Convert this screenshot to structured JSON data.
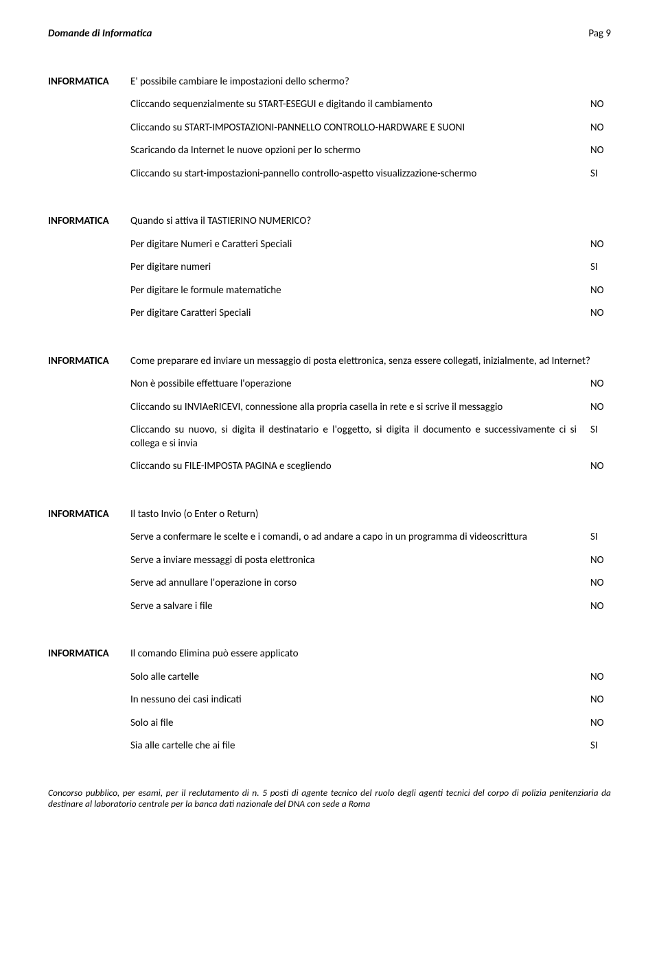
{
  "header": {
    "left": "Domande di Informatica",
    "right": "Pag 9"
  },
  "category_label": "INFORMATICA",
  "questions": [
    {
      "text": "E' possibile cambiare le impostazioni dello schermo?",
      "answers": [
        {
          "text": "Cliccando sequenzialmente su START-ESEGUI e digitando il cambiamento",
          "flag": "NO"
        },
        {
          "text": "Cliccando su START-IMPOSTAZIONI-PANNELLO CONTROLLO-HARDWARE E SUONI",
          "flag": "NO"
        },
        {
          "text": "Scaricando da Internet le nuove opzioni per lo schermo",
          "flag": "NO"
        },
        {
          "text": "Cliccando su start-impostazioni-pannello controllo-aspetto visualizzazione-schermo",
          "flag": "SI"
        }
      ]
    },
    {
      "text": "Quando si attiva il TASTIERINO NUMERICO?",
      "answers": [
        {
          "text": "Per digitare Numeri e Caratteri Speciali",
          "flag": "NO"
        },
        {
          "text": "Per digitare numeri",
          "flag": "SI"
        },
        {
          "text": "Per digitare le formule matematiche",
          "flag": "NO"
        },
        {
          "text": "Per digitare Caratteri Speciali",
          "flag": "NO"
        }
      ]
    },
    {
      "text": "Come preparare ed inviare un messaggio di posta elettronica, senza essere collegati, inizialmente, ad Internet?",
      "answers": [
        {
          "text": "Non è possibile effettuare l'operazione",
          "flag": "NO"
        },
        {
          "text": "Cliccando su INVIAeRICEVI, connessione alla propria casella in rete e si scrive il messaggio",
          "flag": "NO"
        },
        {
          "text": "Cliccando su nuovo, si digita il destinatario e l'oggetto, si digita il documento e successivamente ci si collega e si invia",
          "flag": "SI"
        },
        {
          "text": "Cliccando su FILE-IMPOSTA PAGINA e scegliendo",
          "flag": "NO"
        }
      ]
    },
    {
      "text": "Il tasto Invio (o Enter o Return)",
      "answers": [
        {
          "text": "Serve a confermare le scelte e i comandi, o ad andare a capo in un programma di videoscrittura",
          "flag": "SI"
        },
        {
          "text": "Serve a inviare messaggi di posta elettronica",
          "flag": "NO"
        },
        {
          "text": "Serve ad annullare l'operazione in corso",
          "flag": "NO"
        },
        {
          "text": "Serve a salvare i file",
          "flag": "NO"
        }
      ]
    },
    {
      "text": "Il comando Elimina può essere applicato",
      "answers": [
        {
          "text": "Solo alle cartelle",
          "flag": "NO"
        },
        {
          "text": "In nessuno dei casi indicati",
          "flag": "NO"
        },
        {
          "text": "Solo ai file",
          "flag": "NO"
        },
        {
          "text": "Sia alle cartelle che ai file",
          "flag": "SI"
        }
      ]
    }
  ],
  "footer": "Concorso pubblico, per esami, per il reclutamento di n. 5 posti di agente tecnico del ruolo degli agenti tecnici del corpo di polizia penitenziaria da destinare al laboratorio centrale per la banca dati nazionale del DNA con sede a Roma"
}
